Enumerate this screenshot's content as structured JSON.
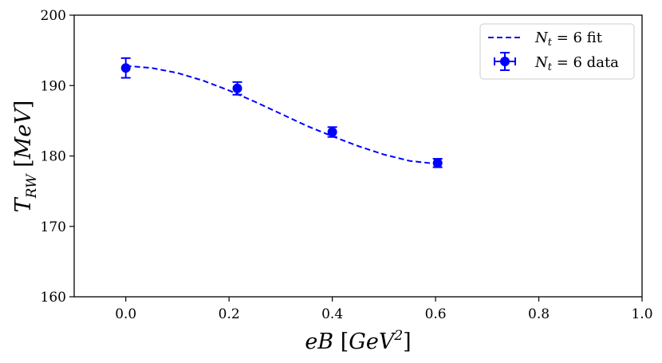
{
  "chart_data": {
    "type": "line",
    "title": "",
    "xlabel": "eB [GeV^2]",
    "ylabel": "T_RW [MeV]",
    "xlim": [
      -0.1,
      1.0
    ],
    "ylim": [
      160,
      200
    ],
    "x_ticks": [
      "0.0",
      "0.2",
      "0.4",
      "0.6",
      "0.8",
      "1.0"
    ],
    "y_ticks": [
      "160",
      "170",
      "180",
      "190",
      "200"
    ],
    "grid": false,
    "legend_position": "top-right",
    "colors": {
      "series": "#0000ff"
    },
    "series": [
      {
        "name": "N_t = 6 fit",
        "style": "dashed-line",
        "x": [
          0.0,
          0.05,
          0.1,
          0.15,
          0.2,
          0.25,
          0.3,
          0.35,
          0.4,
          0.45,
          0.5,
          0.55,
          0.6
        ],
        "y": [
          192.8,
          192.5,
          191.8,
          190.7,
          189.3,
          187.7,
          186.0,
          184.3,
          182.8,
          181.4,
          180.2,
          179.3,
          178.9
        ]
      },
      {
        "name": "N_t = 6 data",
        "style": "marker-errorbar",
        "x": [
          0.0,
          0.216,
          0.4,
          0.604
        ],
        "y": [
          192.5,
          189.6,
          183.4,
          179.0
        ],
        "yerr": [
          1.4,
          0.9,
          0.7,
          0.6
        ]
      }
    ]
  }
}
